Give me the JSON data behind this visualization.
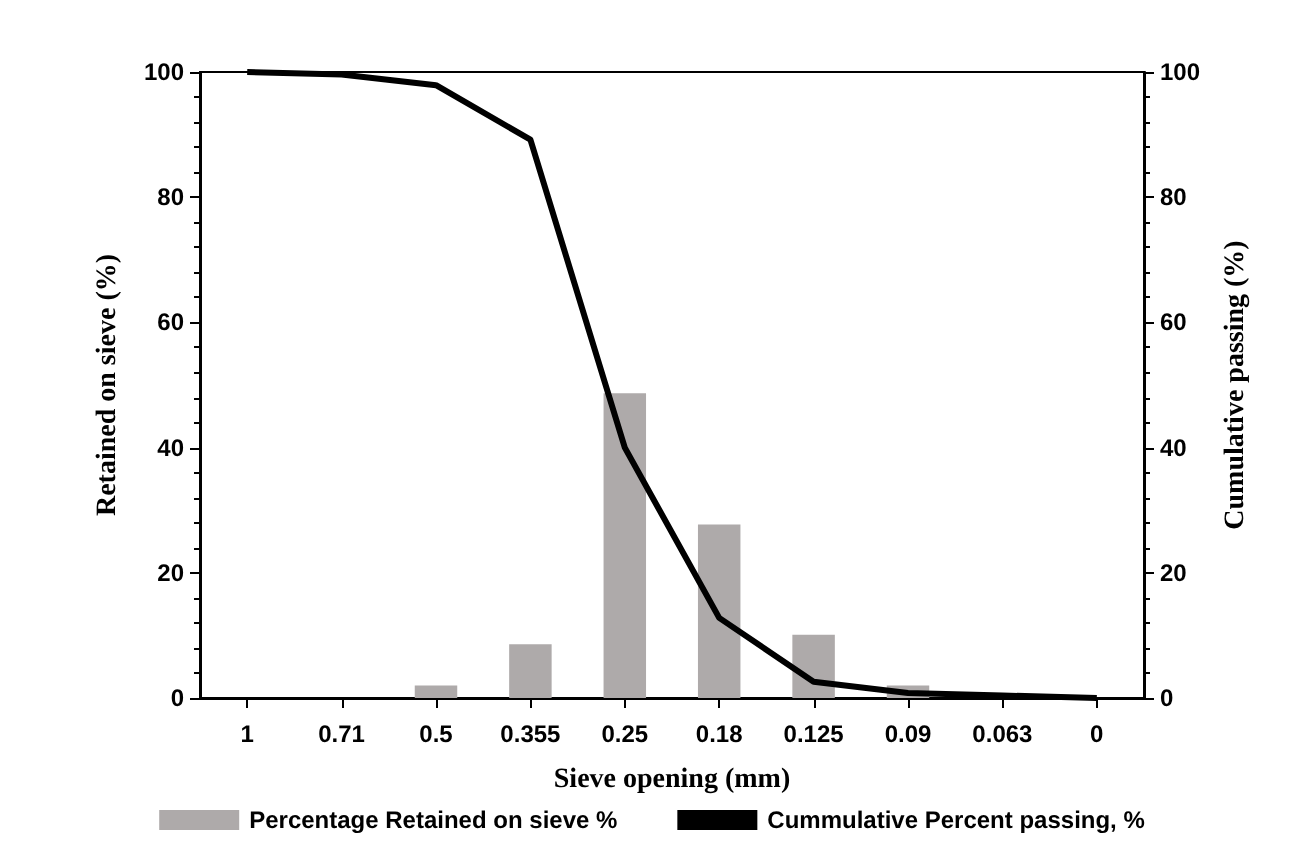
{
  "chart_data": {
    "type": "bar",
    "xlabel": "Sieve opening (mm)",
    "ylabel": "Retained on sieve (%)",
    "y2label": "Cumulative passing (%)",
    "categories": [
      "1",
      "0.71",
      "0.5",
      "0.355",
      "0.25",
      "0.18",
      "0.125",
      "0.09",
      "0.063",
      "0"
    ],
    "series": [
      {
        "name": "Percentage Retained on sieve %",
        "color": "#aeaaaa",
        "values": [
          0,
          0,
          2.0,
          8.6,
          48.7,
          27.7,
          10.1,
          2.0,
          0,
          0
        ]
      },
      {
        "name": "Cummulative Percent passing, %",
        "type": "line",
        "axis": "y2",
        "color": "#000000",
        "values": [
          100,
          99.6,
          97.9,
          89.2,
          40.0,
          12.8,
          2.6,
          0.8,
          0.4,
          0
        ]
      }
    ],
    "ylim": [
      0,
      100
    ],
    "yticks": [
      0,
      20,
      40,
      60,
      80,
      100
    ],
    "y2lim": [
      0,
      100
    ],
    "y2ticks": [
      0,
      20,
      40,
      60,
      80,
      100
    ],
    "grid": false,
    "legend": "bottom",
    "marker": "none",
    "line_style": "solid"
  }
}
